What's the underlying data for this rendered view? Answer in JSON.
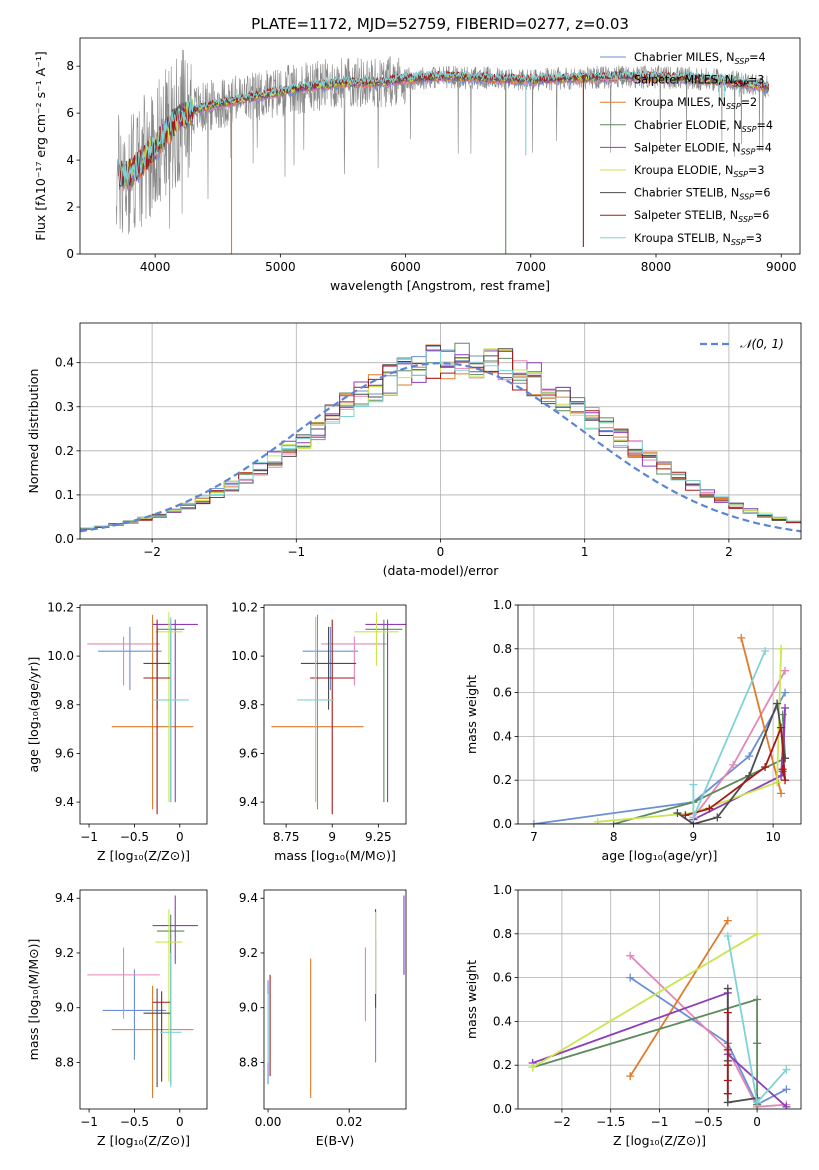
{
  "figure_title": "PLATE=1172, MJD=52759, FIBERID=0277, z=0.03",
  "palette": [
    "#6b8fd6",
    "#e387b8",
    "#e07b2c",
    "#5e8a5e",
    "#8e3fb8",
    "#c9e64f",
    "#4d4d4d",
    "#a31a1a",
    "#7fd3d6",
    "#888888"
  ],
  "chart_data": [
    {
      "id": "spectrum",
      "type": "line",
      "xlabel": "wavelength [Angstrom, rest frame]",
      "ylabel": "Flux [fλ10⁻¹⁷ erg cm⁻² s⁻¹ A⁻¹]",
      "xlim": [
        3400,
        9150
      ],
      "ylim": [
        0,
        9.2
      ],
      "xticks": [
        4000,
        5000,
        6000,
        7000,
        8000,
        9000
      ],
      "yticks": [
        0,
        2,
        4,
        6,
        8
      ],
      "grid": false,
      "legend_position": "top-right",
      "legend": [
        {
          "label": "Chabrier MILES, N_SSP=4",
          "color": "#6b8fd6"
        },
        {
          "label": "Salpeter MILES, N_SSP=3",
          "color": "#e387b8"
        },
        {
          "label": "Kroupa MILES, N_SSP=2",
          "color": "#e07b2c"
        },
        {
          "label": "Chabrier ELODIE, N_SSP=4",
          "color": "#5e8a5e"
        },
        {
          "label": "Salpeter ELODIE, N_SSP=4",
          "color": "#8e3fb8"
        },
        {
          "label": "Kroupa ELODIE, N_SSP=3",
          "color": "#c9e64f"
        },
        {
          "label": "Chabrier STELIB, N_SSP=6",
          "color": "#4d4d4d"
        },
        {
          "label": "Salpeter STELIB, N_SSP=6",
          "color": "#a31a1a"
        },
        {
          "label": "Kroupa STELIB, N_SSP=3",
          "color": "#7fd3d6"
        }
      ],
      "continuum_knots": [
        [
          3690,
          3.3
        ],
        [
          3800,
          3.4
        ],
        [
          3900,
          3.9
        ],
        [
          4000,
          4.6
        ],
        [
          4100,
          5.2
        ],
        [
          4200,
          5.9
        ],
        [
          4300,
          6.1
        ],
        [
          4500,
          6.4
        ],
        [
          4700,
          6.6
        ],
        [
          5000,
          6.9
        ],
        [
          5200,
          7.1
        ],
        [
          5500,
          7.3
        ],
        [
          5800,
          7.3
        ],
        [
          6000,
          7.45
        ],
        [
          6300,
          7.55
        ],
        [
          6600,
          7.5
        ],
        [
          7000,
          7.4
        ],
        [
          7400,
          7.5
        ],
        [
          7800,
          7.55
        ],
        [
          8200,
          7.5
        ],
        [
          8500,
          7.4
        ],
        [
          8800,
          7.2
        ],
        [
          8900,
          7.1
        ]
      ],
      "sharp_dips": [
        [
          4610,
          0
        ],
        [
          6800,
          0
        ],
        [
          7420,
          0.3
        ],
        [
          6960,
          4.2
        ],
        [
          8505,
          6.5
        ],
        [
          8545,
          6.6
        ],
        [
          8665,
          6.7
        ]
      ]
    },
    {
      "id": "residuals",
      "type": "line",
      "xlabel": "(data-model)/error",
      "ylabel": "Normed distribution",
      "xlim": [
        -2.5,
        2.5
      ],
      "ylim": [
        0,
        0.49
      ],
      "xticks": [
        -2,
        -1,
        0,
        1,
        2
      ],
      "yticks": [
        0.0,
        0.1,
        0.2,
        0.3,
        0.4
      ],
      "grid": true,
      "legend_position": "top-right",
      "legend_label": "𝒩(0, 1)",
      "reference_curve": {
        "mean": 0,
        "sigma": 1,
        "color": "#5b86d6"
      },
      "histogram_bin_width": 0.1
    },
    {
      "id": "age-vs-Z",
      "type": "scatter",
      "xlabel": "Z [log₁₀(Z/Z⊙)]",
      "ylabel": "age  [log₁₀(age/yr)]",
      "xlim": [
        -1.1,
        0.3
      ],
      "ylim": [
        9.31,
        10.21
      ],
      "xticks": [
        -1.0,
        -0.5,
        0.0
      ],
      "yticks": [
        9.4,
        9.6,
        9.8,
        10.0,
        10.2
      ],
      "points": [
        {
          "x": -0.55,
          "y": 10.02,
          "xerr": 0.35,
          "y_lo": 9.86,
          "y_hi": 10.12
        },
        {
          "x": -0.62,
          "y": 10.05,
          "xerr": 0.4,
          "y_lo": 9.88,
          "y_hi": 10.08
        },
        {
          "x": -0.3,
          "y": 9.71,
          "xerr": 0.45,
          "y_lo": 9.37,
          "y_hi": 10.17
        },
        {
          "x": -0.1,
          "y": 10.11,
          "xerr": 0.15,
          "y_lo": 9.4,
          "y_hi": 10.15
        },
        {
          "x": -0.05,
          "y": 10.13,
          "xerr": 0.25,
          "y_lo": 9.4,
          "y_hi": 10.15
        },
        {
          "x": -0.12,
          "y": 10.1,
          "xerr": 0.15,
          "y_lo": 9.4,
          "y_hi": 10.18
        },
        {
          "x": -0.25,
          "y": 9.97,
          "xerr": 0.15,
          "y_lo": 9.78,
          "y_hi": 10.12
        },
        {
          "x": -0.25,
          "y": 9.91,
          "xerr": 0.15,
          "y_lo": 9.35,
          "y_hi": 10.15
        },
        {
          "x": -0.1,
          "y": 9.82,
          "xerr": 0.2,
          "y_lo": 9.4,
          "y_hi": 10.16
        }
      ]
    },
    {
      "id": "age-vs-mass",
      "type": "scatter",
      "xlabel": "mass [log₁₀(M/M⊙)]",
      "ylabel": "",
      "xlim": [
        8.63,
        9.4
      ],
      "ylim": [
        9.31,
        10.21
      ],
      "xticks": [
        8.75,
        9.0,
        9.25
      ],
      "yticks": [
        9.4,
        9.6,
        9.8,
        10.0,
        10.2
      ],
      "points": [
        {
          "x": 8.99,
          "y": 10.02,
          "xerr": 0.15,
          "y_lo": 9.86,
          "y_hi": 10.12
        },
        {
          "x": 9.12,
          "y": 10.05,
          "xerr": 0.18,
          "y_lo": 9.88,
          "y_hi": 10.08
        },
        {
          "x": 8.92,
          "y": 9.71,
          "xerr": 0.25,
          "y_lo": 9.37,
          "y_hi": 10.17
        },
        {
          "x": 9.28,
          "y": 10.11,
          "xerr": 0.1,
          "y_lo": 9.4,
          "y_hi": 10.15
        },
        {
          "x": 9.3,
          "y": 10.13,
          "xerr": 0.12,
          "y_lo": 9.4,
          "y_hi": 10.15
        },
        {
          "x": 9.24,
          "y": 10.1,
          "xerr": 0.12,
          "y_lo": 9.96,
          "y_hi": 10.18
        },
        {
          "x": 8.98,
          "y": 9.97,
          "xerr": 0.15,
          "y_lo": 9.78,
          "y_hi": 10.12
        },
        {
          "x": 9.0,
          "y": 9.91,
          "xerr": 0.12,
          "y_lo": 9.35,
          "y_hi": 10.15
        },
        {
          "x": 8.91,
          "y": 9.82,
          "xerr": 0.1,
          "y_lo": 9.4,
          "y_hi": 10.16
        }
      ]
    },
    {
      "id": "mass-weight-vs-age",
      "type": "line",
      "xlabel": "age  [log₁₀(age/yr)]",
      "ylabel": "mass weight",
      "xlim": [
        6.8,
        10.35
      ],
      "ylim": [
        0,
        1
      ],
      "xticks": [
        7,
        8,
        9,
        10
      ],
      "yticks": [
        0.0,
        0.2,
        0.4,
        0.6,
        0.8,
        1.0
      ],
      "grid": true,
      "series": [
        {
          "points": [
            [
              7.0,
              0.0
            ],
            [
              9.0,
              0.1
            ],
            [
              9.7,
              0.31
            ],
            [
              10.15,
              0.6
            ]
          ]
        },
        {
          "points": [
            [
              9.0,
              0.03
            ],
            [
              9.5,
              0.27
            ],
            [
              10.15,
              0.7
            ]
          ]
        },
        {
          "points": [
            [
              9.6,
              0.85
            ],
            [
              10.1,
              0.14
            ]
          ]
        },
        {
          "points": [
            [
              8.0,
              0.0
            ],
            [
              9.0,
              0.1
            ],
            [
              10.15,
              0.3
            ],
            [
              10.12,
              0.5
            ]
          ]
        },
        {
          "points": [
            [
              9.0,
              0.02
            ],
            [
              10.1,
              0.22
            ],
            [
              10.15,
              0.53
            ],
            [
              10.12,
              0.24
            ]
          ]
        },
        {
          "points": [
            [
              7.8,
              0.01
            ],
            [
              9.0,
              0.05
            ],
            [
              10.05,
              0.19
            ],
            [
              10.1,
              0.8
            ]
          ]
        },
        {
          "points": [
            [
              8.8,
              0.05
            ],
            [
              9.0,
              0.0
            ],
            [
              9.3,
              0.03
            ],
            [
              9.7,
              0.22
            ],
            [
              10.05,
              0.55
            ],
            [
              10.15,
              0.3
            ]
          ]
        },
        {
          "points": [
            [
              8.9,
              0.04
            ],
            [
              9.2,
              0.07
            ],
            [
              9.9,
              0.26
            ],
            [
              10.1,
              0.44
            ],
            [
              10.15,
              0.2
            ],
            [
              10.12,
              0.25
            ]
          ]
        },
        {
          "points": [
            [
              9.0,
              0.18
            ],
            [
              9.0,
              0.03
            ],
            [
              9.9,
              0.79
            ]
          ]
        }
      ]
    },
    {
      "id": "mass-vs-Z",
      "type": "scatter",
      "xlabel": "Z [log₁₀(Z/Z⊙)]",
      "ylabel": "mass [log₁₀(M/M⊙)]",
      "xlim": [
        -1.1,
        0.3
      ],
      "ylim": [
        8.63,
        9.43
      ],
      "xticks": [
        -1.0,
        -0.5,
        0.0
      ],
      "yticks": [
        8.8,
        9.0,
        9.2,
        9.4
      ],
      "points": [
        {
          "x": -0.5,
          "y": 8.99,
          "xerr": 0.35,
          "y_lo": 8.81,
          "y_hi": 9.14
        },
        {
          "x": -0.62,
          "y": 9.12,
          "xerr": 0.4,
          "y_lo": 8.96,
          "y_hi": 9.22
        },
        {
          "x": -0.3,
          "y": 8.92,
          "xerr": 0.45,
          "y_lo": 8.67,
          "y_hi": 9.08
        },
        {
          "x": -0.1,
          "y": 9.28,
          "xerr": 0.15,
          "y_lo": 8.72,
          "y_hi": 9.34
        },
        {
          "x": -0.05,
          "y": 9.3,
          "xerr": 0.25,
          "y_lo": 9.16,
          "y_hi": 9.41
        },
        {
          "x": -0.12,
          "y": 9.24,
          "xerr": 0.15,
          "y_lo": 8.73,
          "y_hi": 9.36
        },
        {
          "x": -0.25,
          "y": 8.98,
          "xerr": 0.15,
          "y_lo": 8.71,
          "y_hi": 9.07
        },
        {
          "x": -0.2,
          "y": 9.02,
          "xerr": 0.1,
          "y_lo": 8.73,
          "y_hi": 9.06
        },
        {
          "x": -0.1,
          "y": 8.91,
          "xerr": 0.12,
          "y_lo": 8.71,
          "y_hi": 9.2
        }
      ]
    },
    {
      "id": "mass-vs-EBV",
      "type": "scatter",
      "xlabel": "E(B-V)",
      "ylabel": "",
      "xlim": [
        -0.001,
        0.034
      ],
      "ylim": [
        8.63,
        9.43
      ],
      "xticks": [
        0.0,
        0.02
      ],
      "xticklabels": [
        "0.00",
        "0.02"
      ],
      "yticks": [
        8.8,
        9.0,
        9.2,
        9.4
      ],
      "vertical_segments": [
        {
          "x": 0.0,
          "y_lo": 8.72,
          "y_hi": 9.1,
          "ci": 0
        },
        {
          "x": 0.0005,
          "y_lo": 8.75,
          "y_hi": 9.12,
          "ci": 7
        },
        {
          "x": 0.0,
          "y_lo": 8.8,
          "y_hi": 9.05,
          "ci": 8
        },
        {
          "x": 0.0105,
          "y_lo": 8.67,
          "y_hi": 9.18,
          "ci": 2
        },
        {
          "x": 0.024,
          "y_lo": 8.95,
          "y_hi": 9.22,
          "ci": 1
        },
        {
          "x": 0.0265,
          "y_lo": 8.8,
          "y_hi": 9.25,
          "ci": 0
        },
        {
          "x": 0.0265,
          "y_lo": 9.0,
          "y_hi": 9.36,
          "ci": 6
        },
        {
          "x": 0.0265,
          "y_lo": 9.05,
          "y_hi": 9.35,
          "ci": 5
        },
        {
          "x": 0.0335,
          "y_lo": 9.12,
          "y_hi": 9.41,
          "ci": 4
        }
      ]
    },
    {
      "id": "mass-weight-vs-Z",
      "type": "line",
      "xlabel": "Z [log₁₀(Z/Z⊙)]",
      "ylabel": "mass weight",
      "xlim": [
        -2.45,
        0.45
      ],
      "ylim": [
        0,
        1
      ],
      "xticks": [
        -2.0,
        -1.5,
        -1.0,
        -0.5,
        0.0
      ],
      "yticks": [
        0.0,
        0.2,
        0.4,
        0.6,
        0.8,
        1.0
      ],
      "grid": true,
      "series": [
        {
          "points": [
            [
              -1.3,
              0.6
            ],
            [
              -0.3,
              0.3
            ],
            [
              0.0,
              0.02
            ],
            [
              0.3,
              0.09
            ]
          ]
        },
        {
          "points": [
            [
              -1.3,
              0.7
            ],
            [
              -0.3,
              0.27
            ],
            [
              0.0,
              0.01
            ],
            [
              0.3,
              0.02
            ]
          ]
        },
        {
          "points": [
            [
              -1.3,
              0.15
            ],
            [
              -0.3,
              0.86
            ]
          ]
        },
        {
          "points": [
            [
              -2.3,
              0.19
            ],
            [
              0.0,
              0.5
            ],
            [
              0.0,
              0.3
            ],
            [
              0.0,
              0.02
            ]
          ]
        },
        {
          "points": [
            [
              -2.3,
              0.21
            ],
            [
              -0.3,
              0.53
            ],
            [
              -0.3,
              0.25
            ],
            [
              0.3,
              0.01
            ]
          ]
        },
        {
          "points": [
            [
              -2.3,
              0.19
            ],
            [
              0.0,
              0.8
            ]
          ]
        },
        {
          "points": [
            [
              -0.3,
              0.55
            ],
            [
              -0.3,
              0.22
            ],
            [
              -0.3,
              0.03
            ],
            [
              0.0,
              0.05
            ]
          ]
        },
        {
          "points": [
            [
              -0.3,
              0.44
            ],
            [
              -0.3,
              0.27
            ],
            [
              -0.3,
              0.2
            ],
            [
              -0.3,
              0.13
            ],
            [
              -0.3,
              0.07
            ]
          ]
        },
        {
          "points": [
            [
              -0.3,
              0.79
            ],
            [
              0.0,
              0.03
            ],
            [
              0.3,
              0.18
            ]
          ]
        }
      ]
    }
  ]
}
